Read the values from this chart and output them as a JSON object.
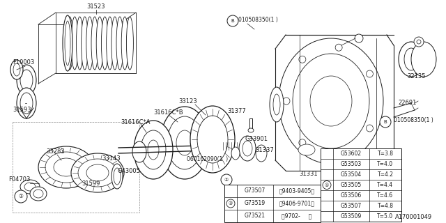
{
  "bg_color": "#ffffff",
  "footer": "A170001049",
  "dark": "#1a1a1a",
  "gray": "#888888",
  "font_size_label": 6.0,
  "font_size_table": 5.5,
  "table1": {
    "rows": [
      [
        "",
        "G73507",
        "〈9403-9405〉"
      ],
      [
        "③",
        "G73519",
        "〈9406-9701〉"
      ],
      [
        "",
        "G73521",
        "〈9702-     〉"
      ]
    ]
  },
  "table2": {
    "rows": [
      [
        "",
        "G53602",
        "T=3.8"
      ],
      [
        "",
        "G53503",
        "T=4.0"
      ],
      [
        "",
        "G53504",
        "T=4.2"
      ],
      [
        "①",
        "G53505",
        "T=4.4"
      ],
      [
        "",
        "G53506",
        "T=4.6"
      ],
      [
        "",
        "G53507",
        "T=4.8"
      ],
      [
        "",
        "G53509",
        "T=5.0"
      ]
    ]
  }
}
